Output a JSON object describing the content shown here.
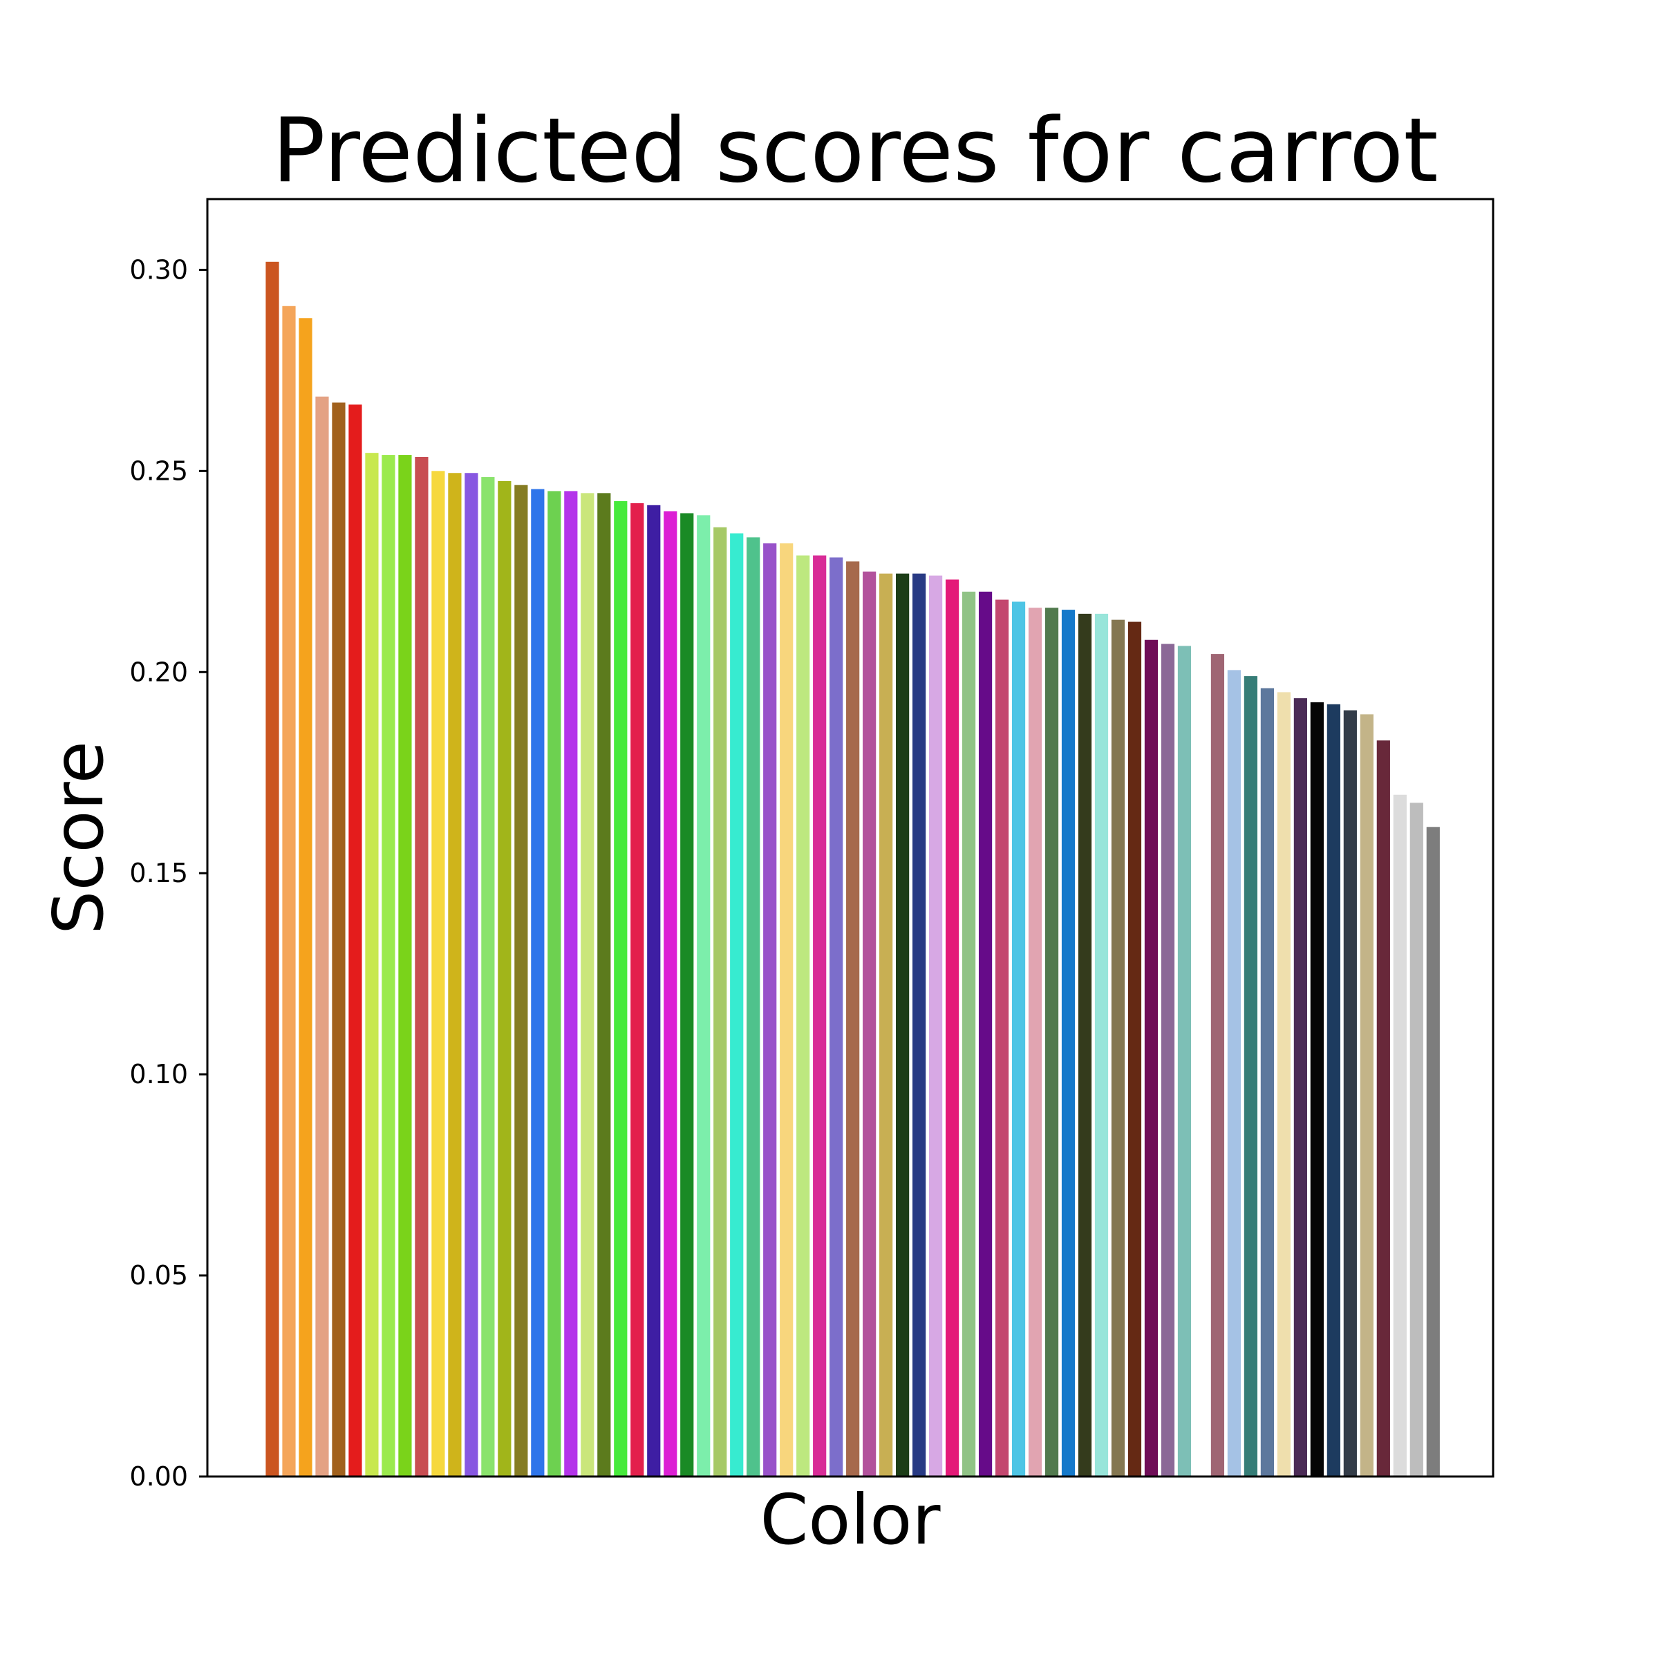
{
  "chart_data": {
    "type": "bar",
    "title": "Predicted scores for carrot",
    "xlabel": "Color",
    "ylabel": "Score",
    "ylim": [
      0,
      0.3176
    ],
    "yticks": [
      0.0,
      0.05,
      0.1,
      0.15,
      0.2,
      0.25,
      0.3
    ],
    "ytick_labels": [
      "0.00",
      "0.05",
      "0.10",
      "0.15",
      "0.20",
      "0.25",
      "0.30"
    ],
    "grid": false,
    "legend": "none",
    "bars": [
      {
        "slot": 0,
        "value": 0.302,
        "color": "#cb5520"
      },
      {
        "slot": 1,
        "value": 0.291,
        "color": "#f4a55a"
      },
      {
        "slot": 2,
        "value": 0.288,
        "color": "#f5a31d"
      },
      {
        "slot": 3,
        "value": 0.2685,
        "color": "#e4a284"
      },
      {
        "slot": 4,
        "value": 0.267,
        "color": "#a1611d"
      },
      {
        "slot": 5,
        "value": 0.2665,
        "color": "#e41c1c"
      },
      {
        "slot": 6,
        "value": 0.2545,
        "color": "#c8e84f"
      },
      {
        "slot": 7,
        "value": 0.254,
        "color": "#9bea4d"
      },
      {
        "slot": 8,
        "value": 0.254,
        "color": "#7ad31a"
      },
      {
        "slot": 9,
        "value": 0.2535,
        "color": "#c84d52"
      },
      {
        "slot": 10,
        "value": 0.25,
        "color": "#f6d83d"
      },
      {
        "slot": 11,
        "value": 0.2495,
        "color": "#cfb41b"
      },
      {
        "slot": 12,
        "value": 0.2495,
        "color": "#8757e1"
      },
      {
        "slot": 13,
        "value": 0.2485,
        "color": "#8ae36c"
      },
      {
        "slot": 14,
        "value": 0.2475,
        "color": "#a1b51a"
      },
      {
        "slot": 15,
        "value": 0.2465,
        "color": "#857c22"
      },
      {
        "slot": 16,
        "value": 0.2455,
        "color": "#2f75ea"
      },
      {
        "slot": 17,
        "value": 0.245,
        "color": "#6dd150"
      },
      {
        "slot": 18,
        "value": 0.245,
        "color": "#b434ea"
      },
      {
        "slot": 19,
        "value": 0.2445,
        "color": "#cae67b"
      },
      {
        "slot": 20,
        "value": 0.2445,
        "color": "#5c7b1d"
      },
      {
        "slot": 21,
        "value": 0.2425,
        "color": "#46ea3b"
      },
      {
        "slot": 22,
        "value": 0.242,
        "color": "#e3204c"
      },
      {
        "slot": 23,
        "value": 0.2415,
        "color": "#3e1ea3"
      },
      {
        "slot": 24,
        "value": 0.24,
        "color": "#dc1fd4"
      },
      {
        "slot": 25,
        "value": 0.2395,
        "color": "#1a8a25"
      },
      {
        "slot": 26,
        "value": 0.239,
        "color": "#7ceeab"
      },
      {
        "slot": 27,
        "value": 0.236,
        "color": "#a6c966"
      },
      {
        "slot": 28,
        "value": 0.2345,
        "color": "#37ebd0"
      },
      {
        "slot": 29,
        "value": 0.2335,
        "color": "#4fc28c"
      },
      {
        "slot": 30,
        "value": 0.232,
        "color": "#9852c9"
      },
      {
        "slot": 31,
        "value": 0.232,
        "color": "#f8d67d"
      },
      {
        "slot": 32,
        "value": 0.229,
        "color": "#bde87f"
      },
      {
        "slot": 33,
        "value": 0.229,
        "color": "#d82c97"
      },
      {
        "slot": 34,
        "value": 0.2285,
        "color": "#7c6ecb"
      },
      {
        "slot": 35,
        "value": 0.2275,
        "color": "#a6694c"
      },
      {
        "slot": 36,
        "value": 0.225,
        "color": "#b2529c"
      },
      {
        "slot": 37,
        "value": 0.2245,
        "color": "#c8af53"
      },
      {
        "slot": 38,
        "value": 0.2245,
        "color": "#1c3d17"
      },
      {
        "slot": 39,
        "value": 0.2245,
        "color": "#283a84"
      },
      {
        "slot": 40,
        "value": 0.224,
        "color": "#d7a8e4"
      },
      {
        "slot": 41,
        "value": 0.223,
        "color": "#e41978"
      },
      {
        "slot": 42,
        "value": 0.22,
        "color": "#90c386"
      },
      {
        "slot": 43,
        "value": 0.22,
        "color": "#660b89"
      },
      {
        "slot": 44,
        "value": 0.218,
        "color": "#c3476f"
      },
      {
        "slot": 45,
        "value": 0.2175,
        "color": "#4ec5e5"
      },
      {
        "slot": 46,
        "value": 0.216,
        "color": "#e1a4b1"
      },
      {
        "slot": 47,
        "value": 0.216,
        "color": "#527a4e"
      },
      {
        "slot": 48,
        "value": 0.2155,
        "color": "#1579ca"
      },
      {
        "slot": 49,
        "value": 0.2145,
        "color": "#343b1c"
      },
      {
        "slot": 50,
        "value": 0.2145,
        "color": "#98e5da"
      },
      {
        "slot": 51,
        "value": 0.213,
        "color": "#847751"
      },
      {
        "slot": 52,
        "value": 0.2125,
        "color": "#652914"
      },
      {
        "slot": 53,
        "value": 0.208,
        "color": "#6f0d57"
      },
      {
        "slot": 54,
        "value": 0.207,
        "color": "#8b6897"
      },
      {
        "slot": 55,
        "value": 0.2065,
        "color": "#7dbfb6"
      },
      {
        "slot": 57,
        "value": 0.2045,
        "color": "#9f6573"
      },
      {
        "slot": 58,
        "value": 0.2005,
        "color": "#a5c2e5"
      },
      {
        "slot": 59,
        "value": 0.199,
        "color": "#367d77"
      },
      {
        "slot": 60,
        "value": 0.196,
        "color": "#5d789d"
      },
      {
        "slot": 61,
        "value": 0.195,
        "color": "#efdfad"
      },
      {
        "slot": 62,
        "value": 0.1935,
        "color": "#4b2b56"
      },
      {
        "slot": 63,
        "value": 0.1925,
        "color": "#050505"
      },
      {
        "slot": 64,
        "value": 0.192,
        "color": "#1d3b5f"
      },
      {
        "slot": 65,
        "value": 0.1905,
        "color": "#333c48"
      },
      {
        "slot": 66,
        "value": 0.1895,
        "color": "#c3b488"
      },
      {
        "slot": 67,
        "value": 0.183,
        "color": "#68283a"
      },
      {
        "slot": 68,
        "value": 0.1695,
        "color": "#dcdcdc"
      },
      {
        "slot": 69,
        "value": 0.1675,
        "color": "#bdbdbd"
      },
      {
        "slot": 70,
        "value": 0.1615,
        "color": "#7d7d7d"
      }
    ]
  }
}
